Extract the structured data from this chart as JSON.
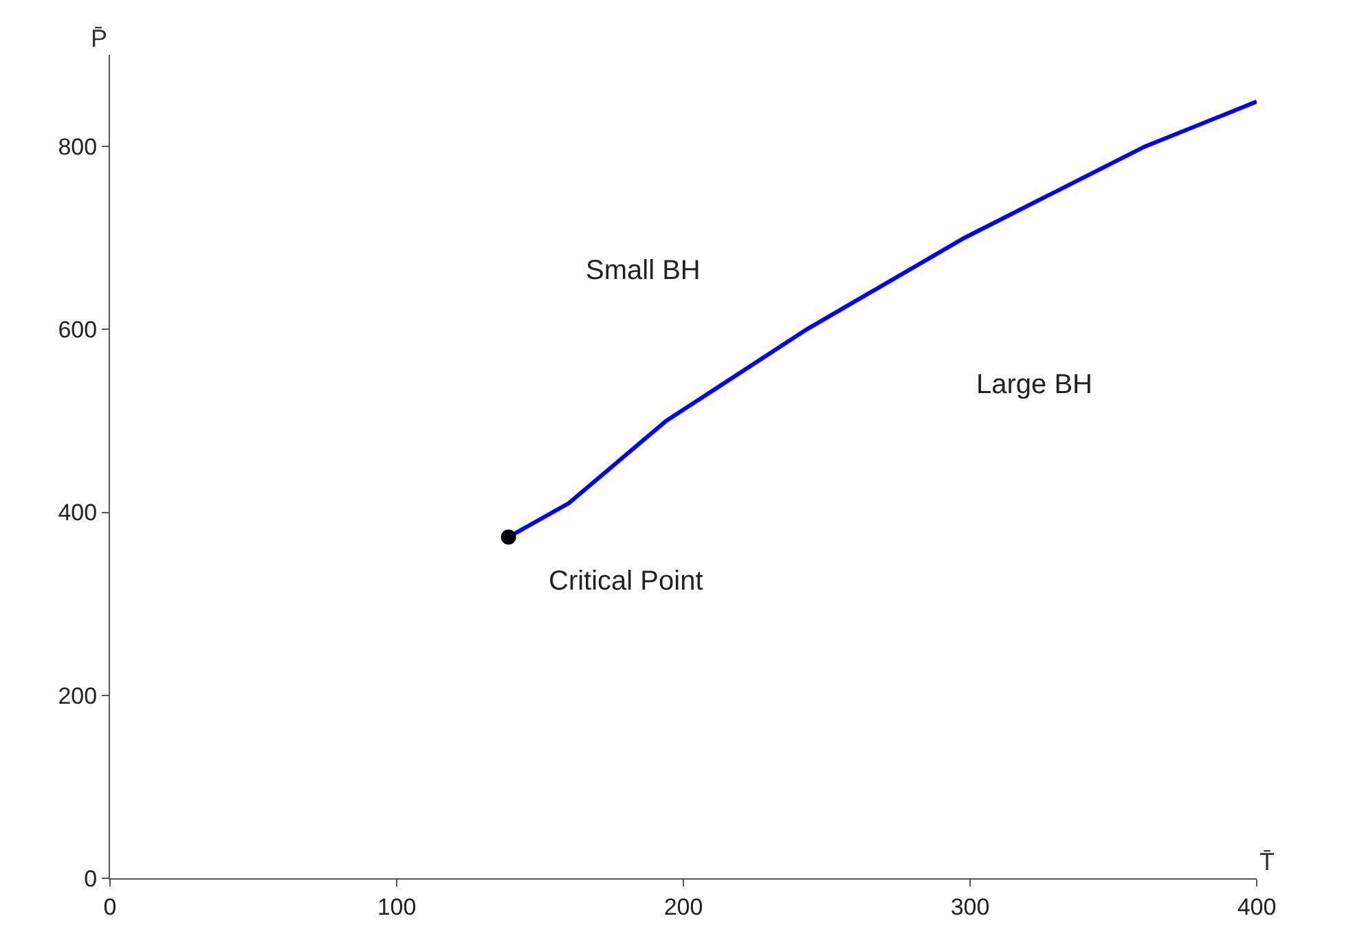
{
  "chart_data": {
    "type": "line",
    "xlabel": "T̄",
    "ylabel": "P̄",
    "xlim": [
      0,
      400
    ],
    "ylim": [
      0,
      900
    ],
    "xticks": [
      0,
      100,
      200,
      300,
      400
    ],
    "yticks": [
      0,
      200,
      400,
      600,
      800
    ],
    "series": [
      {
        "color": "#0000ff",
        "x": [
          139,
          160,
          194,
          243,
          298,
          361,
          400
        ],
        "values": [
          373,
          410,
          500,
          600,
          700,
          800,
          849
        ]
      },
      {
        "type": "scatter",
        "color": "#000000",
        "marker": "circle",
        "x": [
          139
        ],
        "values": [
          373
        ]
      }
    ],
    "annotations": [
      "Small BH",
      "Large BH",
      "Critical Point"
    ]
  }
}
